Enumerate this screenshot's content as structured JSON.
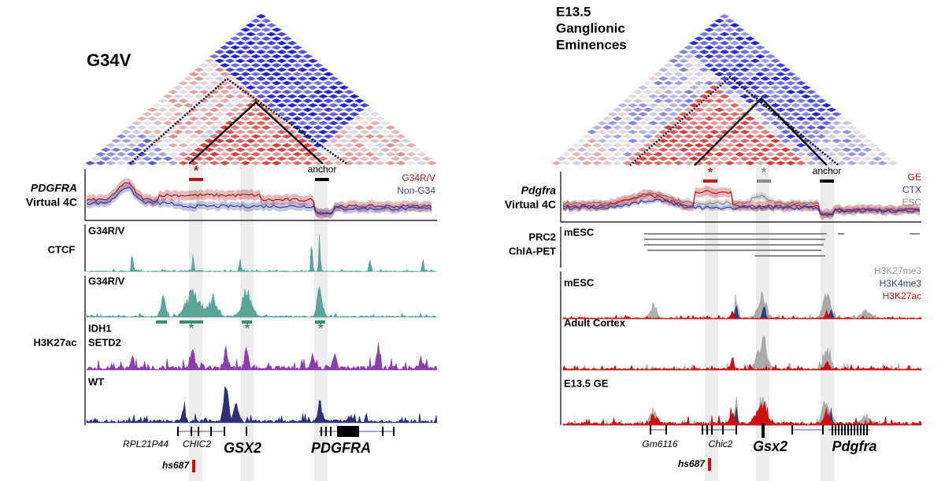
{
  "left": {
    "title": "G34V",
    "v4c": {
      "gene": "PDGFRA",
      "label": "Virtual 4C",
      "legend": [
        {
          "name": "G34R/V",
          "color": "#a61c1c"
        },
        {
          "name": "Non-G34",
          "color": "#3b3f9e"
        }
      ],
      "anchor": "anchor",
      "star": "*"
    },
    "ctcf": {
      "label": "CTCF",
      "sample": "G34R/V"
    },
    "h3k27ac": {
      "label": "H3K27ac",
      "samples": [
        [
          "G34R/V"
        ],
        [
          "IDH1",
          "SETD2"
        ],
        [
          "WT"
        ]
      ],
      "stars": [
        "*",
        "*",
        "*"
      ]
    },
    "genes": [
      "RPL21P44",
      "CHIC2",
      "GSX2",
      "PDGFRA"
    ],
    "enhancer": "hs687"
  },
  "right": {
    "title": [
      "E13.5",
      "Ganglionic",
      "Eminences"
    ],
    "v4c": {
      "gene": "Pdgfra",
      "label": "Virtual 4C",
      "legend": [
        {
          "name": "GE",
          "color": "#c0181c"
        },
        {
          "name": "CTX",
          "color": "#3b3f9e"
        },
        {
          "name": "ESC",
          "color": "#8c8c8c"
        }
      ],
      "anchor": "anchor",
      "stars": [
        "*",
        "*"
      ]
    },
    "chiapet": {
      "label": [
        "PRC2",
        "ChIA-PET"
      ],
      "sample": "mESC"
    },
    "marks": [
      {
        "name": "H3K27me3",
        "color": "#9a9a9a"
      },
      {
        "name": "H3K4me3",
        "color": "#2b3a8c"
      },
      {
        "name": "H3K27ac",
        "color": "#d01010"
      }
    ],
    "samples": [
      "mESC",
      "Adult Cortex",
      "E13.5 GE"
    ],
    "genes": [
      "Gm6116",
      "Chic2",
      "Gsx2",
      "Pdgfra"
    ],
    "enhancer": "hs687"
  }
}
